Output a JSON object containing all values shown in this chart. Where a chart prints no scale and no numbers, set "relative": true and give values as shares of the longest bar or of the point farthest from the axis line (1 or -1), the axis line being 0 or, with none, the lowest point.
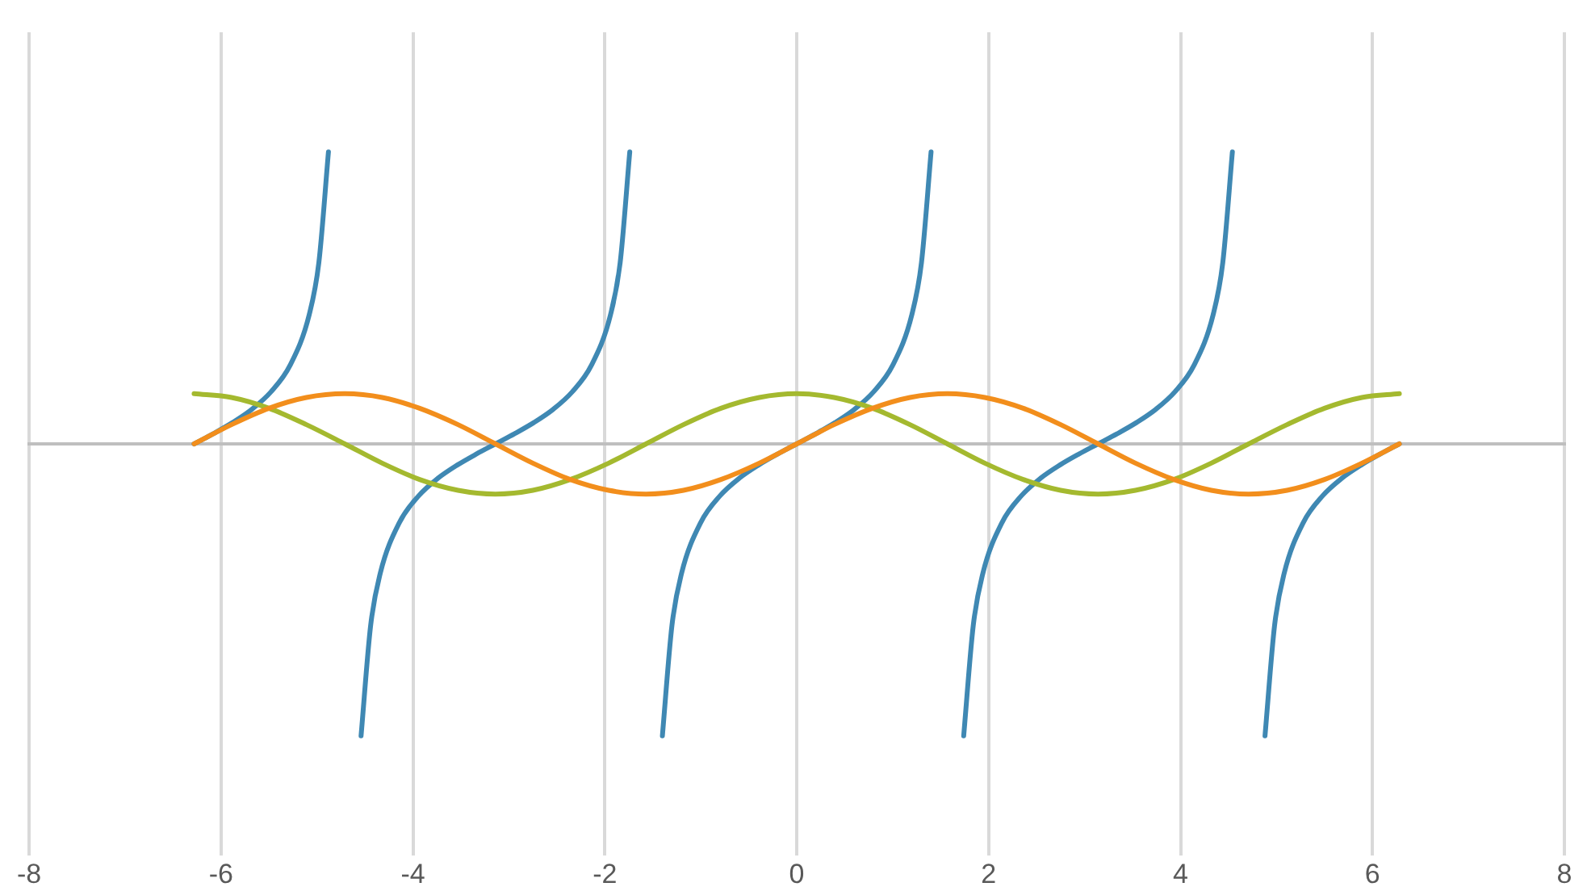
{
  "chart_data": {
    "type": "line",
    "relative": true,
    "xlim": [
      -8,
      8
    ],
    "xticks": [
      -8,
      -6,
      -4,
      -2,
      0,
      2,
      4,
      6,
      8
    ],
    "grid": "x",
    "legend": false,
    "marker": "none",
    "series": [
      {
        "color": "#f28e1c",
        "x": [
          -6.28,
          -5.89,
          -5.5,
          -5.11,
          -4.71,
          -4.32,
          -3.93,
          -3.53,
          -3.14,
          -2.75,
          -2.36,
          -1.96,
          -1.57,
          -1.18,
          -0.79,
          -0.39,
          0,
          0.39,
          0.79,
          1.18,
          1.57,
          1.96,
          2.36,
          2.75,
          3.14,
          3.53,
          3.93,
          4.32,
          4.71,
          5.11,
          5.5,
          5.89,
          6.28
        ],
        "values": [
          0,
          0.066,
          0.122,
          0.159,
          0.172,
          0.159,
          0.122,
          0.066,
          0,
          -0.066,
          -0.122,
          -0.159,
          -0.172,
          -0.159,
          -0.122,
          -0.066,
          0,
          0.066,
          0.122,
          0.159,
          0.172,
          0.159,
          0.122,
          0.066,
          0,
          -0.066,
          -0.122,
          -0.159,
          -0.172,
          -0.159,
          -0.122,
          -0.066,
          0
        ]
      },
      {
        "color": "#a4b92f",
        "x": [
          -6.28,
          -5.89,
          -5.5,
          -5.11,
          -4.71,
          -4.32,
          -3.93,
          -3.53,
          -3.14,
          -2.75,
          -2.36,
          -1.96,
          -1.57,
          -1.18,
          -0.79,
          -0.39,
          0,
          0.39,
          0.79,
          1.18,
          1.57,
          1.96,
          2.36,
          2.75,
          3.14,
          3.53,
          3.93,
          4.32,
          4.71,
          5.11,
          5.5,
          5.89,
          6.28
        ],
        "values": [
          0.172,
          0.159,
          0.122,
          0.066,
          0,
          -0.066,
          -0.122,
          -0.159,
          -0.172,
          -0.159,
          -0.122,
          -0.066,
          0,
          0.066,
          0.122,
          0.159,
          0.172,
          0.159,
          0.122,
          0.066,
          0,
          -0.066,
          -0.122,
          -0.159,
          -0.172,
          -0.159,
          -0.122,
          -0.066,
          0,
          0.066,
          0.122,
          0.159,
          0.172
        ]
      },
      {
        "color": "#3f88b3",
        "x": [
          -6.28,
          -6.08,
          -5.88,
          -5.68,
          -5.48,
          -5.28,
          -5.08,
          -4.98,
          -4.88,
          -4.71,
          -4.54,
          -4.44,
          -4.34,
          -4.14,
          -3.94,
          -3.74,
          -3.54,
          -3.34,
          -3.14,
          -2.94,
          -2.74,
          -2.54,
          -2.34,
          -2.14,
          -1.94,
          -1.84,
          -1.74,
          -1.57,
          -1.4,
          -1.3,
          -1.2,
          -1,
          -0.8,
          -0.6,
          -0.4,
          -0.2,
          0,
          0.2,
          0.4,
          0.6,
          0.8,
          1,
          1.2,
          1.3,
          1.4,
          1.57,
          1.74,
          1.84,
          1.94,
          2.14,
          2.34,
          2.54,
          2.74,
          2.94,
          3.14,
          3.34,
          3.54,
          3.74,
          3.94,
          4.14,
          4.34,
          4.44,
          4.54,
          4.71,
          4.88,
          4.98,
          5.08,
          5.28,
          5.48,
          5.68,
          5.88,
          6.08,
          6.28
        ],
        "values": [
          0,
          0.035,
          0.073,
          0.118,
          0.178,
          0.269,
          0.443,
          0.621,
          1,
          null,
          -1,
          -0.621,
          -0.443,
          -0.269,
          -0.178,
          -0.118,
          -0.073,
          -0.035,
          0,
          0.035,
          0.073,
          0.118,
          0.178,
          0.269,
          0.443,
          0.621,
          1,
          null,
          -1,
          -0.621,
          -0.443,
          -0.269,
          -0.178,
          -0.118,
          -0.073,
          -0.035,
          0,
          0.035,
          0.073,
          0.118,
          0.178,
          0.269,
          0.443,
          0.621,
          1,
          null,
          -1,
          -0.621,
          -0.443,
          -0.269,
          -0.178,
          -0.118,
          -0.073,
          -0.035,
          0,
          0.035,
          0.073,
          0.118,
          0.178,
          0.269,
          0.443,
          0.621,
          1,
          null,
          -1,
          -0.621,
          -0.443,
          -0.269,
          -0.178,
          -0.118,
          -0.073,
          -0.035,
          0
        ]
      }
    ]
  }
}
